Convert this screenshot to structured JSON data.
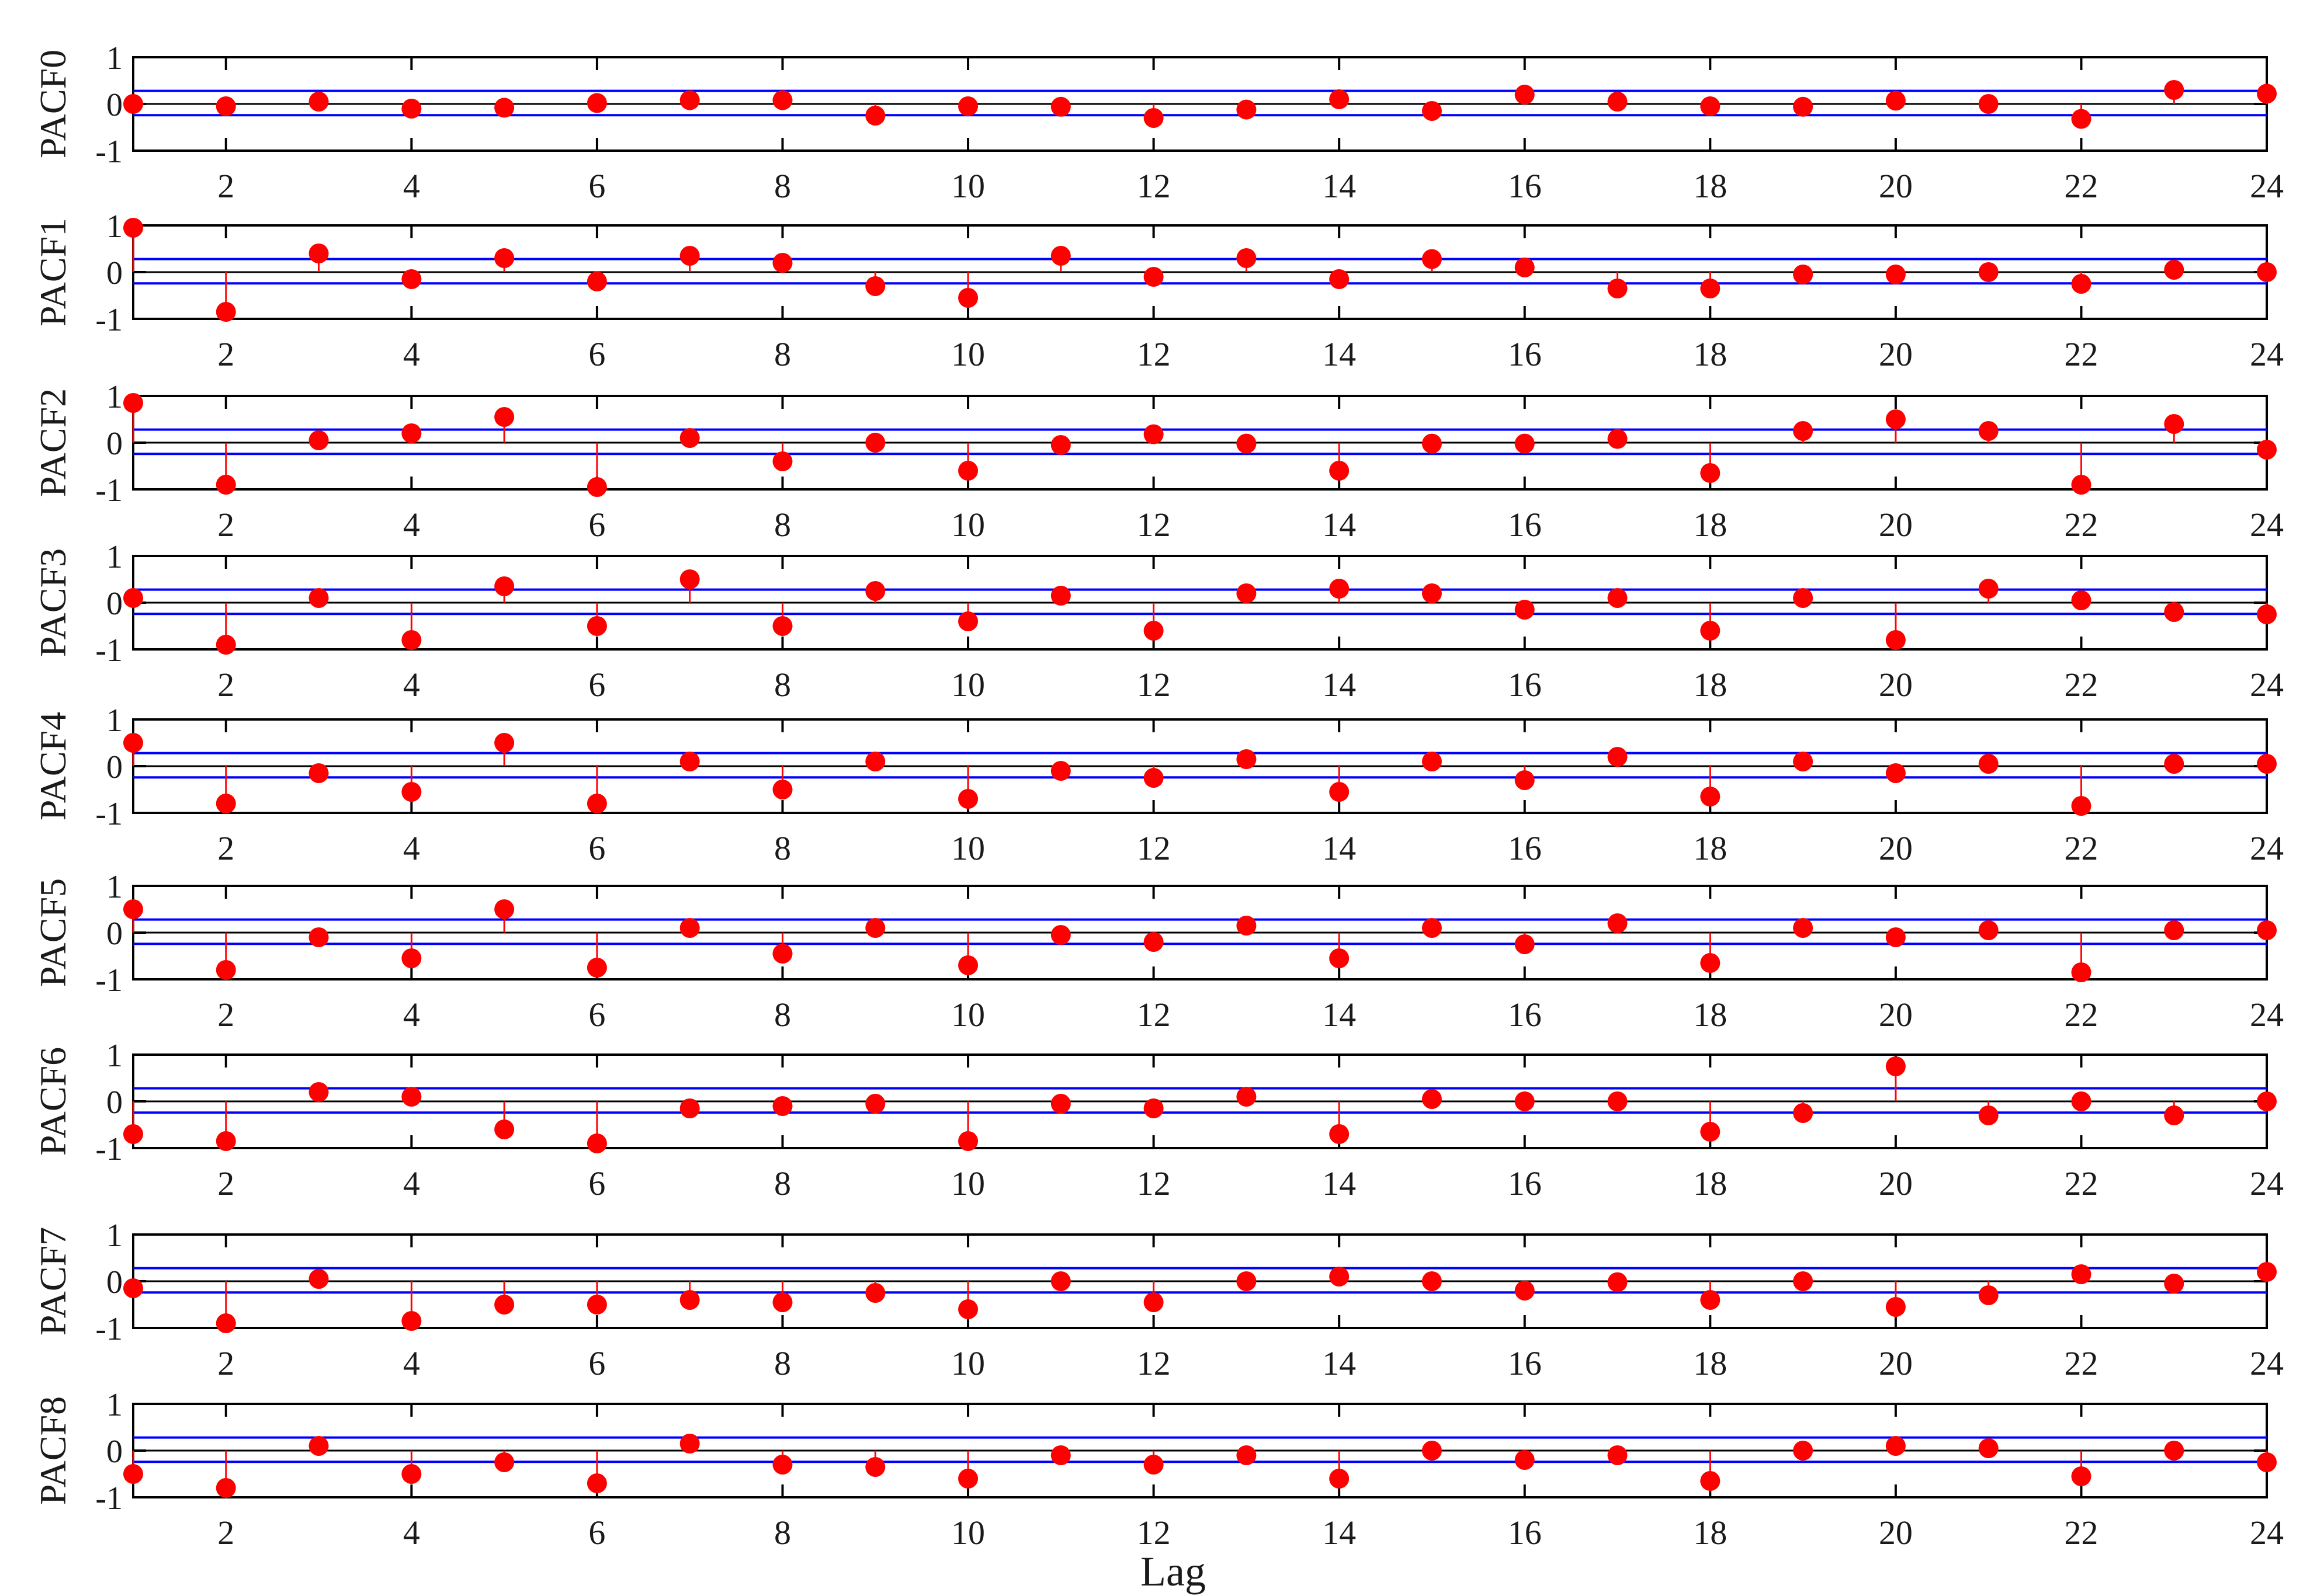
{
  "chart_data": {
    "type": "stem",
    "xlabel": "Lag",
    "x": [
      1,
      2,
      3,
      4,
      5,
      6,
      7,
      8,
      9,
      10,
      11,
      12,
      13,
      14,
      15,
      16,
      17,
      18,
      19,
      20,
      21,
      22,
      23,
      24
    ],
    "xlim": [
      1,
      24
    ],
    "xticks": [
      2,
      4,
      6,
      8,
      10,
      12,
      14,
      16,
      18,
      20,
      22,
      24
    ],
    "ylim": [
      -1,
      1
    ],
    "yticks": [
      -1,
      0,
      1
    ],
    "confidence_bounds": [
      -0.24,
      0.28
    ],
    "colors": {
      "stem": "#ff0000",
      "marker": "#ff0000",
      "bounds": "#0000ff",
      "axes": "#000000",
      "zero": "#000000"
    },
    "grid": false,
    "panels": [
      {
        "ylabel": "PACF0",
        "values": [
          0.0,
          -0.05,
          0.05,
          -0.1,
          -0.08,
          0.02,
          0.08,
          0.08,
          -0.25,
          -0.05,
          -0.06,
          -0.3,
          -0.12,
          0.1,
          -0.15,
          0.2,
          0.05,
          -0.05,
          -0.06,
          0.07,
          0.0,
          -0.32,
          0.3,
          0.22
        ]
      },
      {
        "ylabel": "PACF1",
        "values": [
          0.95,
          -0.85,
          0.4,
          -0.15,
          0.3,
          -0.2,
          0.35,
          0.2,
          -0.3,
          -0.55,
          0.35,
          -0.1,
          0.3,
          -0.15,
          0.28,
          0.1,
          -0.35,
          -0.35,
          -0.05,
          -0.05,
          0.0,
          -0.25,
          0.05,
          0.0
        ]
      },
      {
        "ylabel": "PACF2",
        "values": [
          0.85,
          -0.9,
          0.05,
          0.2,
          0.55,
          -0.95,
          0.1,
          -0.4,
          0.0,
          -0.6,
          -0.05,
          0.18,
          -0.02,
          -0.6,
          -0.02,
          -0.02,
          0.08,
          -0.65,
          0.25,
          0.5,
          0.25,
          -0.9,
          0.4,
          -0.15
        ]
      },
      {
        "ylabel": "PACF3",
        "values": [
          0.1,
          -0.9,
          0.1,
          -0.8,
          0.35,
          -0.5,
          0.5,
          -0.5,
          0.25,
          -0.4,
          0.15,
          -0.6,
          0.2,
          0.3,
          0.2,
          -0.15,
          0.1,
          -0.6,
          0.1,
          -0.8,
          0.3,
          0.05,
          -0.2,
          -0.25
        ]
      },
      {
        "ylabel": "PACF4",
        "values": [
          0.5,
          -0.8,
          -0.15,
          -0.55,
          0.5,
          -0.8,
          0.1,
          -0.5,
          0.1,
          -0.7,
          -0.1,
          -0.25,
          0.15,
          -0.55,
          0.1,
          -0.3,
          0.2,
          -0.65,
          0.1,
          -0.15,
          0.05,
          -0.85,
          0.05,
          0.05
        ]
      },
      {
        "ylabel": "PACF5",
        "values": [
          0.5,
          -0.8,
          -0.1,
          -0.55,
          0.5,
          -0.75,
          0.1,
          -0.45,
          0.1,
          -0.7,
          -0.05,
          -0.2,
          0.15,
          -0.55,
          0.1,
          -0.25,
          0.2,
          -0.65,
          0.1,
          -0.1,
          0.05,
          -0.85,
          0.05,
          0.05
        ]
      },
      {
        "ylabel": "PACF6",
        "values": [
          -0.7,
          -0.85,
          0.2,
          0.1,
          -0.6,
          -0.9,
          -0.15,
          -0.1,
          -0.05,
          -0.85,
          -0.05,
          -0.15,
          0.1,
          -0.7,
          0.05,
          0.0,
          0.0,
          -0.65,
          -0.25,
          0.75,
          -0.3,
          0.0,
          -0.3,
          0.0
        ]
      },
      {
        "ylabel": "PACF7",
        "values": [
          -0.15,
          -0.9,
          0.05,
          -0.85,
          -0.5,
          -0.5,
          -0.4,
          -0.45,
          -0.25,
          -0.6,
          0.0,
          -0.45,
          0.0,
          0.1,
          0.0,
          -0.2,
          -0.02,
          -0.4,
          0.0,
          -0.55,
          -0.3,
          0.15,
          -0.05,
          0.2
        ]
      },
      {
        "ylabel": "PACF8",
        "values": [
          -0.5,
          -0.8,
          0.1,
          -0.5,
          -0.25,
          -0.7,
          0.15,
          -0.3,
          -0.35,
          -0.6,
          -0.1,
          -0.3,
          -0.1,
          -0.6,
          0.0,
          -0.2,
          -0.1,
          -0.65,
          0.0,
          0.1,
          0.05,
          -0.55,
          0.0,
          -0.25
        ]
      }
    ]
  }
}
